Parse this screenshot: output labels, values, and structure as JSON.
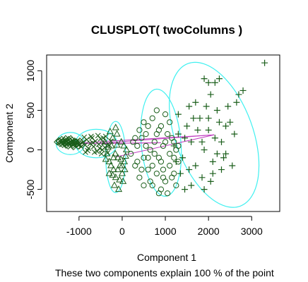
{
  "chart_data": {
    "type": "scatter",
    "title": "CLUSPLOT( twoColumns )",
    "xlabel": "Component 1",
    "ylabel": "Component 2",
    "subtitle": "These two components explain 100 % of the point",
    "xlim": [
      -1750,
      3650
    ],
    "ylim": [
      -780,
      1200
    ],
    "xticks": [
      -1000,
      0,
      1000,
      2000,
      3000
    ],
    "yticks": [
      -500,
      0,
      500,
      1000
    ],
    "x_tick_labels": [
      "-1000",
      "0",
      "1000",
      "2000",
      "3000"
    ],
    "y_tick_labels": [
      "-500",
      "0",
      "500",
      "1000"
    ],
    "colors": {
      "points": "#1a5e1a",
      "ellipse": "#3ff0f0",
      "connector": "#c040c0",
      "frame": "#000000"
    },
    "ellipses": [
      {
        "cluster": 1,
        "cx": -1200,
        "cy": 80,
        "rx": 330,
        "ry": 140,
        "angle": 0
      },
      {
        "cluster": 2,
        "cx": -600,
        "cy": 80,
        "rx": 480,
        "ry": 180,
        "angle": 0
      },
      {
        "cluster": 3,
        "cx": -150,
        "cy": -90,
        "rx": 230,
        "ry": 450,
        "angle": 0
      },
      {
        "cluster": 4,
        "cx": 900,
        "cy": 90,
        "rx": 460,
        "ry": 680,
        "angle": -5
      },
      {
        "cluster": 5,
        "cx": 2130,
        "cy": 190,
        "rx": 900,
        "ry": 960,
        "angle": -20
      }
    ],
    "connectors": [
      [
        -1200,
        80,
        2130,
        190
      ],
      [
        -600,
        80,
        900,
        90
      ],
      [
        -150,
        -90,
        2130,
        190
      ],
      [
        -1200,
        80,
        900,
        90
      ],
      [
        -600,
        80,
        2130,
        190
      ]
    ],
    "series": [
      {
        "cluster": 1,
        "marker": "diamond",
        "points": [
          [
            -1450,
            110
          ],
          [
            -1420,
            90
          ],
          [
            -1400,
            130
          ],
          [
            -1380,
            70
          ],
          [
            -1360,
            100
          ],
          [
            -1340,
            120
          ],
          [
            -1320,
            80
          ],
          [
            -1300,
            60
          ],
          [
            -1280,
            110
          ],
          [
            -1260,
            90
          ],
          [
            -1240,
            130
          ],
          [
            -1220,
            70
          ],
          [
            -1200,
            100
          ],
          [
            -1180,
            80
          ],
          [
            -1160,
            120
          ],
          [
            -1140,
            60
          ],
          [
            -1120,
            90
          ],
          [
            -1100,
            110
          ],
          [
            -1080,
            70
          ],
          [
            -1060,
            100
          ],
          [
            -1040,
            80
          ],
          [
            -1020,
            50
          ],
          [
            -1000,
            90
          ],
          [
            -980,
            110
          ],
          [
            -960,
            70
          ],
          [
            -1390,
            100
          ],
          [
            -1330,
            95
          ],
          [
            -1270,
            100
          ],
          [
            -1210,
            105
          ],
          [
            -1150,
            85
          ],
          [
            -1090,
            95
          ],
          [
            -1500,
            100
          ],
          [
            -1470,
            115
          ],
          [
            -1440,
            80
          ],
          [
            -1310,
            140
          ],
          [
            -1250,
            50
          ],
          [
            -1190,
            140
          ],
          [
            -1130,
            40
          ]
        ]
      },
      {
        "cluster": 2,
        "marker": "x",
        "points": [
          [
            -900,
            100
          ],
          [
            -860,
            60
          ],
          [
            -820,
            130
          ],
          [
            -780,
            20
          ],
          [
            -740,
            80
          ],
          [
            -700,
            150
          ],
          [
            -660,
            40
          ],
          [
            -620,
            110
          ],
          [
            -580,
            -20
          ],
          [
            -540,
            70
          ],
          [
            -500,
            140
          ],
          [
            -460,
            0
          ],
          [
            -420,
            90
          ],
          [
            -380,
            170
          ],
          [
            -340,
            -40
          ],
          [
            -300,
            60
          ],
          [
            -800,
            -10
          ],
          [
            -720,
            170
          ],
          [
            -640,
            -30
          ],
          [
            -560,
            180
          ],
          [
            -480,
            -50
          ],
          [
            -400,
            30
          ],
          [
            -950,
            40
          ],
          [
            -880,
            160
          ],
          [
            -260,
            110
          ],
          [
            -1000,
            60
          ],
          [
            -850,
            -30
          ],
          [
            -680,
            90
          ],
          [
            -520,
            20
          ],
          [
            -440,
            150
          ]
        ]
      },
      {
        "cluster": 3,
        "marker": "triangle",
        "points": [
          [
            -400,
            100
          ],
          [
            -350,
            -50
          ],
          [
            -300,
            -150
          ],
          [
            -250,
            50
          ],
          [
            -200,
            -250
          ],
          [
            -150,
            -350
          ],
          [
            -100,
            -100
          ],
          [
            -50,
            -200
          ],
          [
            0,
            -300
          ],
          [
            50,
            -150
          ],
          [
            100,
            0
          ],
          [
            -180,
            -450
          ],
          [
            -80,
            -500
          ],
          [
            20,
            -400
          ],
          [
            -300,
            -300
          ],
          [
            -220,
            150
          ],
          [
            -120,
            200
          ],
          [
            -20,
            100
          ],
          [
            60,
            -250
          ],
          [
            -260,
            -200
          ],
          [
            -330,
            30
          ],
          [
            -160,
            -50
          ],
          [
            -60,
            -380
          ],
          [
            40,
            50
          ],
          [
            -200,
            -100
          ],
          [
            -150,
            280
          ],
          [
            -220,
            -320
          ],
          [
            80,
            -80
          ],
          [
            -100,
            -250
          ],
          [
            -380,
            -120
          ],
          [
            -30,
            -120
          ],
          [
            -280,
            230
          ],
          [
            -120,
            60
          ],
          [
            0,
            -200
          ]
        ]
      },
      {
        "cluster": 4,
        "marker": "circle",
        "points": [
          [
            200,
            -50
          ],
          [
            250,
            100
          ],
          [
            300,
            -200
          ],
          [
            350,
            50
          ],
          [
            400,
            -350
          ],
          [
            450,
            150
          ],
          [
            500,
            -100
          ],
          [
            550,
            200
          ],
          [
            600,
            -250
          ],
          [
            650,
            0
          ],
          [
            700,
            -450
          ],
          [
            750,
            100
          ],
          [
            800,
            -300
          ],
          [
            850,
            250
          ],
          [
            900,
            -150
          ],
          [
            950,
            50
          ],
          [
            1000,
            -400
          ],
          [
            1050,
            200
          ],
          [
            1100,
            -50
          ],
          [
            1150,
            150
          ],
          [
            1200,
            -300
          ],
          [
            1250,
            0
          ],
          [
            1300,
            -150
          ],
          [
            700,
            400
          ],
          [
            800,
            500
          ],
          [
            900,
            300
          ],
          [
            1000,
            450
          ],
          [
            600,
            300
          ],
          [
            500,
            -450
          ],
          [
            650,
            -400
          ],
          [
            900,
            -500
          ],
          [
            1050,
            -550
          ],
          [
            1150,
            -350
          ],
          [
            1200,
            100
          ],
          [
            750,
            -50
          ],
          [
            850,
            -100
          ],
          [
            950,
            -250
          ],
          [
            1100,
            350
          ],
          [
            350,
            -150
          ],
          [
            450,
            -250
          ],
          [
            550,
            50
          ],
          [
            1300,
            50
          ],
          [
            1250,
            -450
          ],
          [
            300,
            150
          ],
          [
            400,
            250
          ],
          [
            1000,
            100
          ],
          [
            950,
            -350
          ],
          [
            850,
            -550
          ],
          [
            700,
            -200
          ],
          [
            600,
            -100
          ],
          [
            500,
            350
          ],
          [
            800,
            200
          ],
          [
            1100,
            -200
          ],
          [
            1200,
            -100
          ]
        ]
      },
      {
        "cluster": 5,
        "marker": "plus",
        "points": [
          [
            1200,
            50
          ],
          [
            1300,
            200
          ],
          [
            1400,
            -100
          ],
          [
            1500,
            300
          ],
          [
            1600,
            100
          ],
          [
            1700,
            -200
          ],
          [
            1800,
            400
          ],
          [
            1900,
            0
          ],
          [
            2000,
            250
          ],
          [
            2100,
            -150
          ],
          [
            2200,
            500
          ],
          [
            2300,
            100
          ],
          [
            2400,
            -50
          ],
          [
            2500,
            350
          ],
          [
            2600,
            200
          ],
          [
            1450,
            150
          ],
          [
            1550,
            -250
          ],
          [
            1650,
            400
          ],
          [
            1750,
            250
          ],
          [
            1850,
            -350
          ],
          [
            1950,
            550
          ],
          [
            2050,
            700
          ],
          [
            2150,
            150
          ],
          [
            2250,
            350
          ],
          [
            2350,
            -100
          ],
          [
            2450,
            550
          ],
          [
            2550,
            -200
          ],
          [
            1900,
            900
          ],
          [
            2000,
            850
          ],
          [
            2700,
            700
          ],
          [
            2800,
            750
          ],
          [
            3300,
            1100
          ],
          [
            2250,
            900
          ],
          [
            1350,
            -300
          ],
          [
            1600,
            -450
          ],
          [
            1900,
            -500
          ],
          [
            2100,
            -300
          ],
          [
            2300,
            -250
          ],
          [
            1300,
            450
          ],
          [
            1550,
            550
          ],
          [
            1700,
            600
          ],
          [
            2000,
            400
          ],
          [
            2200,
            -50
          ],
          [
            2400,
            300
          ],
          [
            1250,
            -150
          ],
          [
            1450,
            -500
          ],
          [
            1850,
            100
          ],
          [
            2050,
            -400
          ],
          [
            2650,
            600
          ],
          [
            2150,
            850
          ]
        ]
      }
    ]
  }
}
